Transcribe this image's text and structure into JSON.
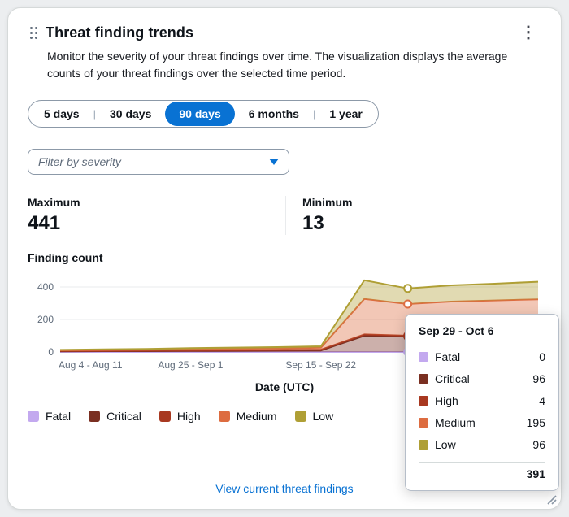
{
  "card": {
    "title": "Threat finding trends",
    "description": "Monitor the severity of your threat findings over time. The visualization displays the average counts of your threat findings over the selected time period."
  },
  "range_selector": {
    "options": [
      {
        "label": "5 days",
        "selected": false
      },
      {
        "label": "30 days",
        "selected": false
      },
      {
        "label": "90 days",
        "selected": true
      },
      {
        "label": "6 months",
        "selected": false
      },
      {
        "label": "1 year",
        "selected": false
      }
    ]
  },
  "filter": {
    "placeholder": "Filter by severity"
  },
  "stats": {
    "maximum": {
      "label": "Maximum",
      "value": "441"
    },
    "minimum": {
      "label": "Minimum",
      "value": "13"
    }
  },
  "chart_data": {
    "type": "area",
    "stacked": true,
    "title": "Finding count",
    "xlabel": "Date (UTC)",
    "ylim": [
      0,
      470
    ],
    "yticks": [
      0,
      200,
      400
    ],
    "x": [
      "Aug 4 - Aug 11",
      "Aug 11 - Aug 18",
      "Aug 18 - Aug 25",
      "Aug 25 - Sep 1",
      "Sep 1 - Sep 8",
      "Sep 8 - Sep 15",
      "Sep 15 - Sep 22",
      "Sep 22 - Sep 29",
      "Sep 29 - Oct 6",
      "Oct 6 - Oct 13",
      "Oct 13 - Oct 20",
      "Oct 20 - Oct 27"
    ],
    "x_tick_indexes": [
      0,
      3,
      6
    ],
    "hover_index": 8,
    "grid": true,
    "legend_position": "bottom",
    "series": [
      {
        "name": "Fatal",
        "color": "#c3a9ef",
        "values": [
          0,
          0,
          0,
          0,
          0,
          0,
          0,
          0,
          0,
          0,
          0,
          0
        ]
      },
      {
        "name": "Critical",
        "color": "#7a2f21",
        "values": [
          4,
          5,
          5,
          6,
          7,
          8,
          9,
          100,
          96,
          99,
          101,
          103
        ]
      },
      {
        "name": "High",
        "color": "#a83820",
        "values": [
          2,
          2,
          3,
          3,
          3,
          4,
          5,
          8,
          4,
          6,
          6,
          6
        ]
      },
      {
        "name": "Medium",
        "color": "#dd6c40",
        "values": [
          4,
          5,
          6,
          8,
          9,
          10,
          12,
          218,
          195,
          205,
          210,
          215
        ]
      },
      {
        "name": "Low",
        "color": "#af9f35",
        "values": [
          3,
          4,
          5,
          7,
          8,
          8,
          9,
          115,
          96,
          100,
          103,
          108
        ]
      }
    ]
  },
  "tooltip": {
    "title": "Sep 29 - Oct 6",
    "rows": [
      {
        "label": "Fatal",
        "value": "0"
      },
      {
        "label": "Critical",
        "value": "96"
      },
      {
        "label": "High",
        "value": "4"
      },
      {
        "label": "Medium",
        "value": "195"
      },
      {
        "label": "Low",
        "value": "96"
      }
    ],
    "total": "391"
  },
  "footer": {
    "link_label": "View current threat findings"
  },
  "colors": {
    "accent": "#0972d3",
    "grid": "#e9ebed",
    "axis_text": "#5f6b7a"
  }
}
